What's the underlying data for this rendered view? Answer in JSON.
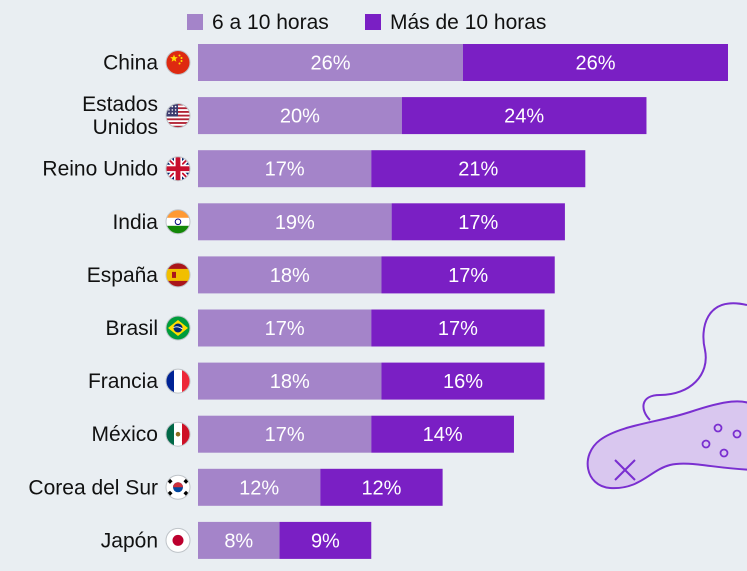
{
  "colors": {
    "background": "#e9eef2",
    "series_light": "#a484c9",
    "series_dark": "#7a1fc4",
    "text": "#111111",
    "decor_stroke": "#7a2fd0",
    "decor_fill": "#d9c7ef"
  },
  "decoration": {
    "name": "game-controller-icon"
  },
  "chart_data": {
    "type": "bar",
    "orientation": "horizontal",
    "stacked": true,
    "categories": [
      "China",
      "Estados Unidos",
      "Reino Unido",
      "India",
      "España",
      "Brasil",
      "Francia",
      "México",
      "Corea del Sur",
      "Japón"
    ],
    "category_lines": [
      [
        "China"
      ],
      [
        "Estados",
        "Unidos"
      ],
      [
        "Reino Unido"
      ],
      [
        "India"
      ],
      [
        "España"
      ],
      [
        "Brasil"
      ],
      [
        "Francia"
      ],
      [
        "México"
      ],
      [
        "Corea del Sur"
      ],
      [
        "Japón"
      ]
    ],
    "flags": [
      "cn",
      "us",
      "gb",
      "in",
      "es",
      "br",
      "fr",
      "mx",
      "kr",
      "jp"
    ],
    "series": [
      {
        "name": "6 a 10 horas",
        "color": "#a484c9",
        "values": [
          26,
          20,
          17,
          19,
          18,
          17,
          18,
          17,
          12,
          8
        ],
        "labels": [
          "26%",
          "20%",
          "17%",
          "19%",
          "18%",
          "17%",
          "18%",
          "17%",
          "12%",
          "8%"
        ]
      },
      {
        "name": "Más de 10 horas",
        "color": "#7a1fc4",
        "values": [
          26,
          24,
          21,
          17,
          17,
          17,
          16,
          14,
          12,
          9
        ],
        "labels": [
          "26%",
          "24%",
          "21%",
          "17%",
          "17%",
          "17%",
          "16%",
          "14%",
          "12%",
          "9%"
        ]
      }
    ],
    "legend_position": "top",
    "grid": false,
    "xlim": [
      0,
      52
    ]
  }
}
